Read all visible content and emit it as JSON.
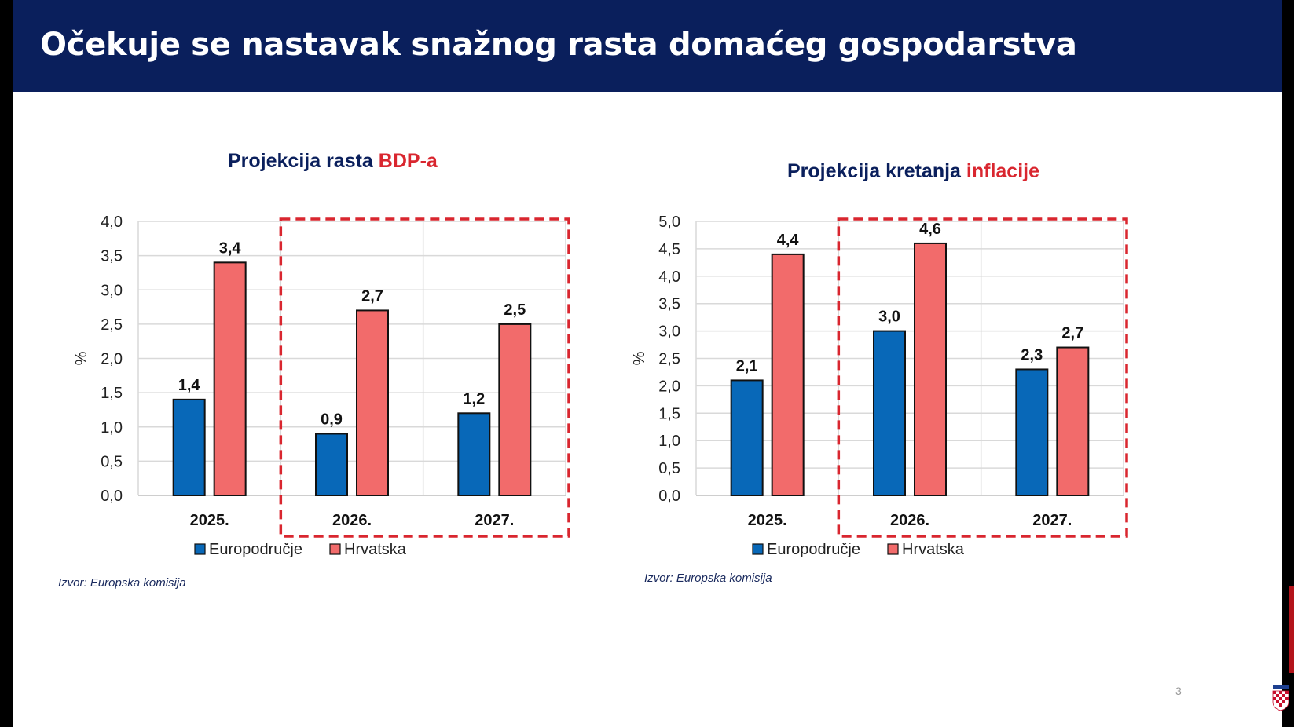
{
  "header": {
    "title": "Očekuje se nastavak snažnog rasta domaćeg gospodarstva"
  },
  "page_number": "3",
  "colors": {
    "header_bg": "#0a1f5c",
    "euro": "#0868b8",
    "hr": "#f26b6b",
    "highlight": "#d9262f"
  },
  "chart_data": [
    {
      "type": "bar",
      "title_prefix": "Projekcija rasta ",
      "title_highlight": "BDP-a",
      "ylabel": "%",
      "ylim": [
        0,
        4
      ],
      "ytick_step": 0.5,
      "yticks": [
        "0,0",
        "0,5",
        "1,0",
        "1,5",
        "2,0",
        "2,5",
        "3,0",
        "3,5",
        "4,0"
      ],
      "categories": [
        "2025.",
        "2026.",
        "2027."
      ],
      "series": [
        {
          "name": "Europodručje",
          "values": [
            1.4,
            0.9,
            1.2
          ],
          "labels": [
            "1,4",
            "0,9",
            "1,2"
          ]
        },
        {
          "name": "Hrvatska",
          "values": [
            3.4,
            2.7,
            2.5
          ],
          "labels": [
            "3,4",
            "2,7",
            "2,5"
          ]
        }
      ],
      "grid": true,
      "legend": "bottom",
      "source": "Izvor: Europska komisija"
    },
    {
      "type": "bar",
      "title_prefix": "Projekcija kretanja ",
      "title_highlight": "inflacije",
      "ylabel": "%",
      "ylim": [
        0,
        5
      ],
      "ytick_step": 0.5,
      "yticks": [
        "0,0",
        "0,5",
        "1,0",
        "1,5",
        "2,0",
        "2,5",
        "3,0",
        "3,5",
        "4,0",
        "4,5",
        "5,0"
      ],
      "categories": [
        "2025.",
        "2026.",
        "2027."
      ],
      "series": [
        {
          "name": "Europodručje",
          "values": [
            2.1,
            3.0,
            2.3
          ],
          "labels": [
            "2,1",
            "3,0",
            "2,3"
          ]
        },
        {
          "name": "Hrvatska",
          "values": [
            4.4,
            4.6,
            2.7
          ],
          "labels": [
            "4,4",
            "4,6",
            "2,7"
          ]
        }
      ],
      "grid": true,
      "legend": "bottom",
      "source": "Izvor: Europska komisija"
    }
  ]
}
